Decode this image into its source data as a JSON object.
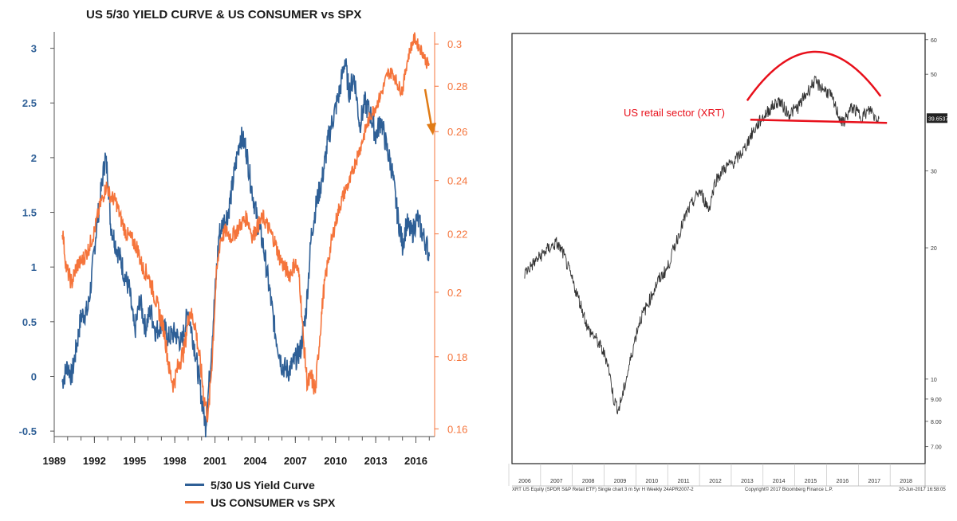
{
  "chart_data": [
    {
      "type": "line",
      "title": "US 5/30 YIELD CURVE & US CONSUMER vs SPX",
      "x_ticks": [
        "1989",
        "1992",
        "1995",
        "1998",
        "2001",
        "2004",
        "2007",
        "2010",
        "2013",
        "2016"
      ],
      "y_left_ticks": [
        "-0.5",
        "0",
        "0.5",
        "1",
        "1.5",
        "2",
        "2.5",
        "3"
      ],
      "y_right_ticks": [
        "0.16",
        "0.18",
        "0.2",
        "0.22",
        "0.24",
        "0.26",
        "0.28",
        "0.3"
      ],
      "y_left_range": [
        -0.55,
        3.15
      ],
      "y_right_range": [
        0.158,
        0.306
      ],
      "right_axis_scale": "log",
      "x_range": [
        1989,
        2017.4
      ],
      "series": [
        {
          "name": "5/30 US Yield Curve",
          "axis": "left",
          "color": "#2e5f96",
          "points": [
            [
              1989.6,
              -0.05
            ],
            [
              1990.0,
              0.1
            ],
            [
              1990.3,
              0.0
            ],
            [
              1990.7,
              0.3
            ],
            [
              1991.0,
              0.55
            ],
            [
              1991.5,
              0.6
            ],
            [
              1991.8,
              0.9
            ],
            [
              1992.1,
              1.3
            ],
            [
              1992.5,
              1.7
            ],
            [
              1992.8,
              2.0
            ],
            [
              1993.0,
              1.85
            ],
            [
              1993.2,
              1.4
            ],
            [
              1993.6,
              1.2
            ],
            [
              1994.0,
              1.05
            ],
            [
              1994.3,
              0.9
            ],
            [
              1994.6,
              0.8
            ],
            [
              1995.0,
              0.4
            ],
            [
              1995.4,
              0.7
            ],
            [
              1995.8,
              0.45
            ],
            [
              1996.2,
              0.6
            ],
            [
              1996.6,
              0.4
            ],
            [
              1997.0,
              0.5
            ],
            [
              1997.5,
              0.35
            ],
            [
              1998.0,
              0.4
            ],
            [
              1998.5,
              0.3
            ],
            [
              1999.0,
              0.6
            ],
            [
              1999.5,
              0.25
            ],
            [
              2000.0,
              -0.2
            ],
            [
              2000.3,
              -0.45
            ],
            [
              2000.6,
              0.0
            ],
            [
              2001.0,
              0.75
            ],
            [
              2001.3,
              1.3
            ],
            [
              2001.6,
              1.4
            ],
            [
              2002.0,
              1.5
            ],
            [
              2002.5,
              1.9
            ],
            [
              2002.9,
              2.2
            ],
            [
              2003.3,
              2.1
            ],
            [
              2003.7,
              1.75
            ],
            [
              2004.2,
              1.4
            ],
            [
              2004.6,
              1.2
            ],
            [
              2005.0,
              0.85
            ],
            [
              2005.5,
              0.4
            ],
            [
              2006.0,
              0.1
            ],
            [
              2006.5,
              0.05
            ],
            [
              2007.0,
              0.15
            ],
            [
              2007.4,
              0.25
            ],
            [
              2007.8,
              0.6
            ],
            [
              2008.2,
              1.3
            ],
            [
              2008.6,
              1.6
            ],
            [
              2009.0,
              1.8
            ],
            [
              2009.5,
              2.2
            ],
            [
              2009.9,
              2.4
            ],
            [
              2010.3,
              2.6
            ],
            [
              2010.7,
              2.9
            ],
            [
              2011.0,
              2.6
            ],
            [
              2011.4,
              2.75
            ],
            [
              2011.8,
              2.3
            ],
            [
              2012.2,
              2.5
            ],
            [
              2012.6,
              2.4
            ],
            [
              2013.0,
              2.2
            ],
            [
              2013.4,
              2.35
            ],
            [
              2013.8,
              2.1
            ],
            [
              2014.2,
              1.9
            ],
            [
              2014.6,
              1.5
            ],
            [
              2015.0,
              1.2
            ],
            [
              2015.3,
              1.4
            ],
            [
              2015.7,
              1.3
            ],
            [
              2016.1,
              1.45
            ],
            [
              2016.5,
              1.3
            ],
            [
              2016.8,
              1.2
            ],
            [
              2017.0,
              1.1
            ]
          ]
        },
        {
          "name": "US CONSUMER vs SPX",
          "axis": "right",
          "color": "#f5743b",
          "points": [
            [
              1989.6,
              0.222
            ],
            [
              1989.9,
              0.208
            ],
            [
              1990.3,
              0.203
            ],
            [
              1990.7,
              0.209
            ],
            [
              1991.0,
              0.21
            ],
            [
              1991.5,
              0.214
            ],
            [
              1992.0,
              0.221
            ],
            [
              1992.4,
              0.23
            ],
            [
              1992.9,
              0.238
            ],
            [
              1993.2,
              0.234
            ],
            [
              1993.6,
              0.232
            ],
            [
              1994.0,
              0.225
            ],
            [
              1994.4,
              0.22
            ],
            [
              1994.8,
              0.218
            ],
            [
              1995.2,
              0.215
            ],
            [
              1995.6,
              0.208
            ],
            [
              1996.0,
              0.206
            ],
            [
              1996.4,
              0.2
            ],
            [
              1996.8,
              0.194
            ],
            [
              1997.2,
              0.188
            ],
            [
              1997.6,
              0.176
            ],
            [
              1997.9,
              0.172
            ],
            [
              1998.3,
              0.178
            ],
            [
              1998.7,
              0.182
            ],
            [
              1999.1,
              0.194
            ],
            [
              1999.5,
              0.19
            ],
            [
              1999.9,
              0.178
            ],
            [
              2000.2,
              0.168
            ],
            [
              2000.5,
              0.163
            ],
            [
              2000.8,
              0.18
            ],
            [
              2001.1,
              0.205
            ],
            [
              2001.4,
              0.218
            ],
            [
              2001.8,
              0.221
            ],
            [
              2002.2,
              0.219
            ],
            [
              2002.6,
              0.221
            ],
            [
              2003.0,
              0.224
            ],
            [
              2003.4,
              0.226
            ],
            [
              2003.8,
              0.219
            ],
            [
              2004.2,
              0.223
            ],
            [
              2004.6,
              0.226
            ],
            [
              2005.0,
              0.222
            ],
            [
              2005.4,
              0.218
            ],
            [
              2005.8,
              0.212
            ],
            [
              2006.2,
              0.208
            ],
            [
              2006.6,
              0.206
            ],
            [
              2007.0,
              0.21
            ],
            [
              2007.3,
              0.205
            ],
            [
              2007.6,
              0.185
            ],
            [
              2007.9,
              0.172
            ],
            [
              2008.2,
              0.174
            ],
            [
              2008.5,
              0.17
            ],
            [
              2008.8,
              0.185
            ],
            [
              2009.1,
              0.2
            ],
            [
              2009.5,
              0.212
            ],
            [
              2009.9,
              0.222
            ],
            [
              2010.3,
              0.23
            ],
            [
              2010.7,
              0.236
            ],
            [
              2011.1,
              0.24
            ],
            [
              2011.5,
              0.248
            ],
            [
              2011.9,
              0.254
            ],
            [
              2012.3,
              0.262
            ],
            [
              2012.7,
              0.268
            ],
            [
              2013.1,
              0.272
            ],
            [
              2013.5,
              0.278
            ],
            [
              2013.9,
              0.286
            ],
            [
              2014.3,
              0.286
            ],
            [
              2014.7,
              0.28
            ],
            [
              2015.0,
              0.278
            ],
            [
              2015.3,
              0.29
            ],
            [
              2015.6,
              0.298
            ],
            [
              2015.9,
              0.303
            ],
            [
              2016.2,
              0.299
            ],
            [
              2016.5,
              0.296
            ],
            [
              2016.8,
              0.291
            ],
            [
              2017.0,
              0.29
            ]
          ]
        }
      ],
      "legend_placement": "bottom",
      "annotation_arrow_color": "#e07b16",
      "grid": false
    },
    {
      "type": "line",
      "annotation_label": "US retail sector (XRT)",
      "annotation_color": "#e8101b",
      "line_color": "#333333",
      "y_scale": "log",
      "y_range": [
        6.4,
        62
      ],
      "x_range": [
        2005.6,
        2018.6
      ],
      "x_ticks": [
        "2006",
        "2007",
        "2008",
        "2009",
        "2010",
        "2011",
        "2012",
        "2013",
        "2014",
        "2015",
        "2016",
        "2017",
        "2018"
      ],
      "y_ticks": [
        "60",
        "50",
        "30",
        "20",
        "10",
        "9.00",
        "8.00",
        "7.00"
      ],
      "last_value_label": "39.6537",
      "series": [
        {
          "points": [
            [
              2006.0,
              17.5
            ],
            [
              2006.3,
              18.5
            ],
            [
              2006.7,
              19.8
            ],
            [
              2007.0,
              20.5
            ],
            [
              2007.2,
              19.5
            ],
            [
              2007.5,
              16.8
            ],
            [
              2007.8,
              14.5
            ],
            [
              2008.0,
              13.0
            ],
            [
              2008.2,
              12.5
            ],
            [
              2008.4,
              11.8
            ],
            [
              2008.6,
              11.0
            ],
            [
              2008.8,
              9.0
            ],
            [
              2008.95,
              8.5
            ],
            [
              2009.1,
              9.3
            ],
            [
              2009.3,
              10.8
            ],
            [
              2009.6,
              13.5
            ],
            [
              2009.9,
              15.0
            ],
            [
              2010.2,
              16.8
            ],
            [
              2010.5,
              18.0
            ],
            [
              2010.8,
              21.0
            ],
            [
              2011.1,
              24.0
            ],
            [
              2011.3,
              25.5
            ],
            [
              2011.5,
              27.0
            ],
            [
              2011.8,
              24.5
            ],
            [
              2012.0,
              28.5
            ],
            [
              2012.3,
              30.5
            ],
            [
              2012.6,
              31.5
            ],
            [
              2012.9,
              33.5
            ],
            [
              2013.1,
              36.0
            ],
            [
              2013.4,
              39.0
            ],
            [
              2013.7,
              41.5
            ],
            [
              2014.0,
              43.5
            ],
            [
              2014.3,
              40.5
            ],
            [
              2014.6,
              42.0
            ],
            [
              2014.9,
              45.5
            ],
            [
              2015.1,
              48.0
            ],
            [
              2015.3,
              47.0
            ],
            [
              2015.6,
              45.0
            ],
            [
              2015.9,
              40.0
            ],
            [
              2016.0,
              38.5
            ],
            [
              2016.3,
              42.0
            ],
            [
              2016.6,
              40.0
            ],
            [
              2016.9,
              41.5
            ],
            [
              2017.0,
              40.0
            ],
            [
              2017.15,
              39.6
            ]
          ]
        }
      ],
      "support_level": 39.0,
      "support_range": [
        2013.3,
        2017.4
      ],
      "footer_left": "XRT US Equity (SPDR S&P Retail ETF) Single chart 3 m 5yr H   Weekly 24APR2007-2",
      "footer_center": "Copyright© 2017 Bloomberg Finance L.P.",
      "footer_right": "20-Jun-2017 16:58:05"
    }
  ]
}
